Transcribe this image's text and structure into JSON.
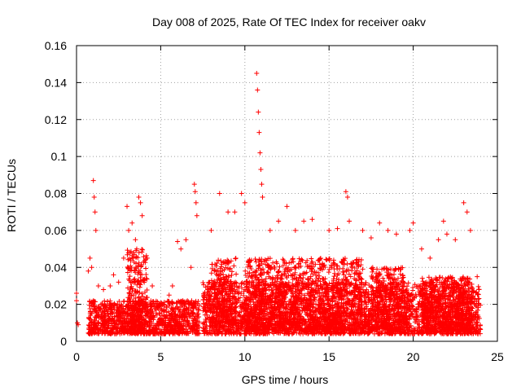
{
  "chart_data": {
    "type": "scatter",
    "title": "Day 008 of 2025, Rate Of TEC Index for receiver oakv",
    "xlabel": "GPS time / hours",
    "ylabel": "ROTI / TECUs",
    "xlim": [
      0,
      25
    ],
    "ylim": [
      0,
      0.16
    ],
    "x_ticks": [
      0,
      5,
      10,
      15,
      20,
      25
    ],
    "y_ticks": [
      0,
      0.02,
      0.04,
      0.06,
      0.08,
      0.1,
      0.12,
      0.14,
      0.16
    ],
    "x_tick_labels": [
      "0",
      "5",
      "10",
      "15",
      "20",
      "25"
    ],
    "y_tick_labels": [
      "0",
      "0.02",
      "0.04",
      "0.06",
      "0.08",
      "0.1",
      "0.12",
      "0.14",
      "0.16"
    ],
    "grid": true,
    "marker": "+",
    "color": "#ff0000",
    "series": [
      {
        "name": "ROTI",
        "points": [
          [
            0.0,
            0.022
          ],
          [
            0.0,
            0.026
          ],
          [
            0.05,
            0.01
          ],
          [
            0.1,
            0.009
          ],
          [
            0.7,
            0.038
          ],
          [
            0.8,
            0.045
          ],
          [
            0.9,
            0.04
          ],
          [
            1.0,
            0.087
          ],
          [
            1.05,
            0.078
          ],
          [
            1.1,
            0.07
          ],
          [
            1.15,
            0.06
          ],
          [
            1.3,
            0.03
          ],
          [
            1.6,
            0.028
          ],
          [
            2.0,
            0.03
          ],
          [
            2.2,
            0.036
          ],
          [
            2.5,
            0.032
          ],
          [
            2.8,
            0.045
          ],
          [
            3.0,
            0.073
          ],
          [
            3.1,
            0.06
          ],
          [
            3.3,
            0.064
          ],
          [
            3.5,
            0.055
          ],
          [
            3.7,
            0.078
          ],
          [
            3.8,
            0.075
          ],
          [
            3.9,
            0.068
          ],
          [
            4.2,
            0.045
          ],
          [
            4.5,
            0.03
          ],
          [
            5.0,
            0.02
          ],
          [
            5.5,
            0.025
          ],
          [
            5.7,
            0.03
          ],
          [
            6.0,
            0.054
          ],
          [
            6.2,
            0.05
          ],
          [
            6.5,
            0.055
          ],
          [
            6.8,
            0.04
          ],
          [
            7.0,
            0.085
          ],
          [
            7.05,
            0.081
          ],
          [
            7.1,
            0.075
          ],
          [
            7.15,
            0.068
          ],
          [
            8.0,
            0.06
          ],
          [
            8.5,
            0.08
          ],
          [
            9.0,
            0.07
          ],
          [
            9.4,
            0.07
          ],
          [
            9.8,
            0.08
          ],
          [
            10.0,
            0.075
          ],
          [
            10.7,
            0.145
          ],
          [
            10.75,
            0.136
          ],
          [
            10.8,
            0.124
          ],
          [
            10.85,
            0.113
          ],
          [
            10.9,
            0.102
          ],
          [
            10.95,
            0.093
          ],
          [
            11.0,
            0.085
          ],
          [
            11.05,
            0.078
          ],
          [
            11.5,
            0.06
          ],
          [
            12.0,
            0.065
          ],
          [
            12.5,
            0.073
          ],
          [
            13.0,
            0.06
          ],
          [
            13.5,
            0.065
          ],
          [
            14.0,
            0.066
          ],
          [
            15.0,
            0.06
          ],
          [
            15.5,
            0.061
          ],
          [
            16.0,
            0.081
          ],
          [
            16.1,
            0.078
          ],
          [
            16.2,
            0.065
          ],
          [
            17.0,
            0.06
          ],
          [
            17.5,
            0.056
          ],
          [
            18.0,
            0.064
          ],
          [
            18.5,
            0.06
          ],
          [
            19.0,
            0.058
          ],
          [
            19.8,
            0.06
          ],
          [
            20.0,
            0.064
          ],
          [
            20.5,
            0.05
          ],
          [
            21.0,
            0.045
          ],
          [
            21.5,
            0.055
          ],
          [
            21.8,
            0.065
          ],
          [
            22.0,
            0.058
          ],
          [
            22.5,
            0.055
          ],
          [
            23.0,
            0.075
          ],
          [
            23.2,
            0.07
          ],
          [
            23.4,
            0.06
          ],
          [
            23.8,
            0.035
          ]
        ],
        "bands": [
          {
            "x": [
              0.7,
              7.3
            ],
            "lo": 0.004,
            "hi": 0.022
          },
          {
            "x": [
              7.5,
              24.0
            ],
            "lo": 0.004,
            "hi": 0.032
          },
          {
            "x": [
              3.0,
              4.2
            ],
            "lo": 0.01,
            "hi": 0.05
          },
          {
            "x": [
              8.0,
              9.5
            ],
            "lo": 0.008,
            "hi": 0.045
          },
          {
            "x": [
              10.0,
              17.0
            ],
            "lo": 0.006,
            "hi": 0.045
          },
          {
            "x": [
              17.5,
              19.5
            ],
            "lo": 0.006,
            "hi": 0.04
          },
          {
            "x": [
              20.5,
              23.5
            ],
            "lo": 0.006,
            "hi": 0.035
          }
        ]
      }
    ]
  }
}
